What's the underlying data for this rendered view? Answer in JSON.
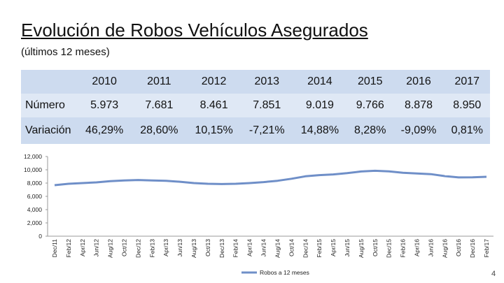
{
  "header": {
    "title": "Evolución de Robos Vehículos Asegurados",
    "subtitle": "(últimos 12 meses)"
  },
  "table": {
    "columns": [
      "2010",
      "2011",
      "2012",
      "2013",
      "2014",
      "2015",
      "2016",
      "2017"
    ],
    "rows": [
      {
        "label": "Número",
        "cells": [
          "5.973",
          "7.681",
          "8.461",
          "7.851",
          "9.019",
          "9.766",
          "8.878",
          "8.950"
        ]
      },
      {
        "label": "Variación",
        "cells": [
          "46,29%",
          "28,60%",
          "10,15%",
          "-7,21%",
          "14,88%",
          "8,28%",
          "-9,09%",
          "0,81%"
        ]
      }
    ]
  },
  "chart_data": {
    "type": "line",
    "categories": [
      "Dec/11",
      "Feb/12",
      "Apr/12",
      "Jun/12",
      "Aug/12",
      "Oct/12",
      "Dec/12",
      "Feb/13",
      "Apr/13",
      "Jun/13",
      "Aug/13",
      "Oct/13",
      "Dec/13",
      "Feb/14",
      "Apr/14",
      "Jun/14",
      "Aug/14",
      "Oct/14",
      "Dec/14",
      "Feb/15",
      "Apr/15",
      "Jun/15",
      "Aug/15",
      "Oct/15",
      "Dec/15",
      "Feb/16",
      "Apr/16",
      "Jun/16",
      "Aug/16",
      "Oct/16",
      "Dec/16",
      "Feb/17"
    ],
    "series": [
      {
        "name": "Robos a 12 meses",
        "color": "#6f8fc8",
        "values": [
          7681,
          7900,
          8000,
          8100,
          8300,
          8400,
          8461,
          8400,
          8350,
          8200,
          8000,
          7900,
          7851,
          7900,
          8000,
          8150,
          8350,
          8650,
          9019,
          9200,
          9300,
          9500,
          9750,
          9850,
          9766,
          9550,
          9450,
          9350,
          9050,
          8850,
          8878,
          8950
        ]
      }
    ],
    "ylim": [
      0,
      12000
    ],
    "yticks": [
      0,
      {
        "value": 2000,
        "label": "2,000"
      },
      {
        "value": 4000,
        "label": "4,000"
      },
      {
        "value": 6000,
        "label": "6,000"
      },
      {
        "value": 8000,
        "label": "8,000"
      },
      {
        "value": 10000,
        "label": "10,000"
      },
      {
        "value": 12000,
        "label": "12,000"
      }
    ],
    "grid": false,
    "legend": "bottom"
  },
  "page_number": "4"
}
